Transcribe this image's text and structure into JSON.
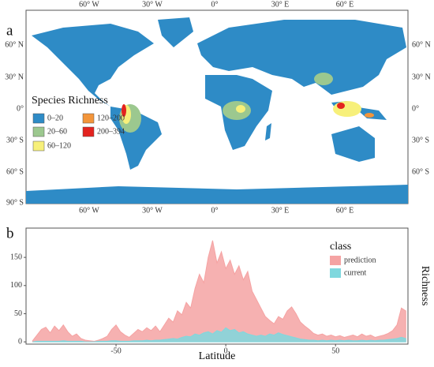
{
  "map": {
    "label": "a",
    "lon_labels": [
      "60° W",
      "30° W",
      "0°",
      "30° E",
      "60° E"
    ],
    "lat_labels": [
      "60° N",
      "30° N",
      "0°",
      "30° S",
      "60° S",
      "90° S"
    ],
    "legend": {
      "title": "Species Richness",
      "items": [
        {
          "label": "0–20",
          "color": "#2e8bc6"
        },
        {
          "label": "20–60",
          "color": "#9cc88f"
        },
        {
          "label": "60–120",
          "color": "#f7f07a"
        },
        {
          "label": "120–200",
          "color": "#f3953a"
        },
        {
          "label": "200–394",
          "color": "#e3231f"
        }
      ]
    }
  },
  "chart_data": {
    "type": "area",
    "label": "b",
    "xlabel": "Latitude",
    "ylabel": "Richness",
    "x": [
      -88,
      -86,
      -84,
      -82,
      -80,
      -78,
      -76,
      -74,
      -72,
      -70,
      -68,
      -66,
      -64,
      -62,
      -60,
      -58,
      -56,
      -54,
      -52,
      -50,
      -48,
      -46,
      -44,
      -42,
      -40,
      -38,
      -36,
      -34,
      -32,
      -30,
      -28,
      -26,
      -24,
      -22,
      -20,
      -18,
      -16,
      -14,
      -12,
      -10,
      -8,
      -6,
      -4,
      -2,
      0,
      2,
      4,
      6,
      8,
      10,
      12,
      14,
      16,
      18,
      20,
      22,
      24,
      26,
      28,
      30,
      32,
      34,
      36,
      38,
      40,
      42,
      44,
      46,
      48,
      50,
      52,
      54,
      56,
      58,
      60,
      62,
      64,
      66,
      68,
      70,
      72,
      74,
      76,
      78,
      80,
      82
    ],
    "series": [
      {
        "name": "prediction",
        "color": "#f5a3a3",
        "values": [
          2,
          12,
          22,
          26,
          16,
          28,
          20,
          30,
          18,
          10,
          14,
          6,
          3,
          2,
          1,
          3,
          6,
          10,
          22,
          30,
          18,
          12,
          8,
          15,
          22,
          18,
          25,
          20,
          28,
          18,
          30,
          42,
          35,
          55,
          48,
          70,
          60,
          95,
          120,
          105,
          150,
          180,
          140,
          160,
          130,
          145,
          120,
          135,
          110,
          125,
          90,
          75,
          60,
          45,
          38,
          32,
          45,
          40,
          55,
          62,
          50,
          35,
          28,
          22,
          15,
          12,
          14,
          10,
          12,
          9,
          11,
          8,
          10,
          12,
          9,
          14,
          10,
          12,
          8,
          10,
          12,
          15,
          20,
          30,
          60,
          55
        ]
      },
      {
        "name": "current",
        "color": "#7fd8de",
        "values": [
          0,
          1,
          1,
          1,
          1,
          1,
          1,
          2,
          1,
          1,
          1,
          1,
          0,
          0,
          0,
          1,
          1,
          1,
          2,
          2,
          1,
          1,
          1,
          2,
          2,
          2,
          3,
          2,
          3,
          3,
          4,
          5,
          6,
          5,
          8,
          10,
          9,
          14,
          12,
          16,
          18,
          14,
          20,
          17,
          25,
          20,
          22,
          16,
          18,
          14,
          12,
          10,
          12,
          10,
          14,
          12,
          16,
          13,
          11,
          9,
          7,
          5,
          4,
          3,
          3,
          2,
          3,
          2,
          3,
          2,
          3,
          2,
          3,
          2,
          2,
          3,
          2,
          3,
          2,
          3,
          3,
          4,
          5,
          6,
          8,
          6
        ]
      }
    ],
    "xlim": [
      -91,
      83
    ],
    "ylim": [
      -4,
      202
    ],
    "xticks": [
      -50,
      0,
      50
    ],
    "yticks": [
      0,
      50,
      100,
      150
    ],
    "legend_title": "class"
  }
}
